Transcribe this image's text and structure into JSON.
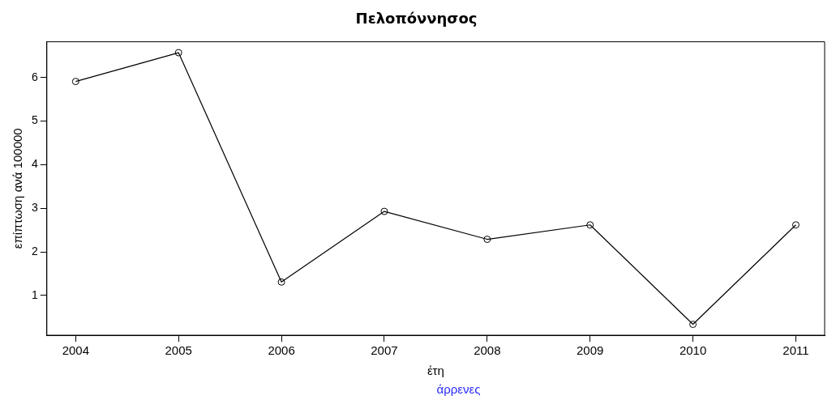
{
  "chart_data": {
    "type": "line",
    "title": "Πελοπόννησος",
    "xlabel": "έτη",
    "ylabel": "επίπτωση ανά 100000",
    "annotations": [
      "άρρενες"
    ],
    "x": [
      2004,
      2005,
      2006,
      2007,
      2008,
      2009,
      2010,
      2011
    ],
    "series": [
      {
        "color": "#000000",
        "values": [
          5.91,
          6.57,
          1.31,
          2.93,
          2.29,
          2.62,
          0.34,
          2.62
        ]
      }
    ],
    "xlim": [
      2003.72,
      2011.28
    ],
    "xticks": [
      2004,
      2005,
      2006,
      2007,
      2008,
      2009,
      2010,
      2011
    ],
    "ylim": [
      0.09,
      6.82
    ],
    "yticks": [
      1,
      2,
      3,
      4,
      5,
      6
    ],
    "grid": false,
    "legend": false,
    "marker": "circle",
    "line_style": "solid"
  }
}
